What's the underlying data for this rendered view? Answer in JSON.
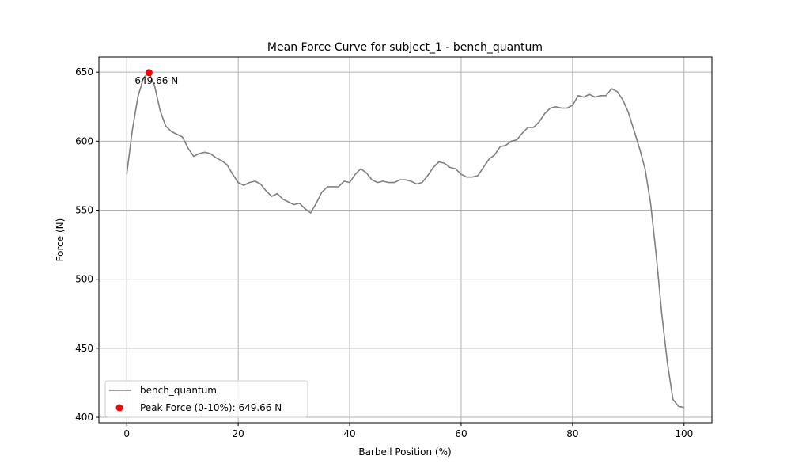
{
  "chart_data": {
    "type": "line",
    "title": "Mean Force Curve for subject_1 - bench_quantum",
    "xlabel": "Barbell Position (%)",
    "ylabel": "Force (N)",
    "xlim": [
      -5,
      105
    ],
    "ylim": [
      396,
      661
    ],
    "xticks": [
      "0",
      "20",
      "40",
      "60",
      "80",
      "100"
    ],
    "yticks": [
      "400",
      "450",
      "500",
      "550",
      "600",
      "650"
    ],
    "grid": true,
    "legend_position": "lower-left",
    "colors": {
      "series": "#808080",
      "peak": "#ff0000",
      "grid": "#b0b0b0"
    },
    "series": [
      {
        "name": "bench_quantum",
        "x": [
          0,
          1,
          2,
          3,
          4,
          5,
          6,
          7,
          8,
          9,
          10,
          11,
          12,
          13,
          14,
          15,
          16,
          17,
          18,
          19,
          20,
          21,
          22,
          23,
          24,
          25,
          26,
          27,
          28,
          29,
          30,
          31,
          32,
          33,
          34,
          35,
          36,
          37,
          38,
          39,
          40,
          41,
          42,
          43,
          44,
          45,
          46,
          47,
          48,
          49,
          50,
          51,
          52,
          53,
          54,
          55,
          56,
          57,
          58,
          59,
          60,
          61,
          62,
          63,
          64,
          65,
          66,
          67,
          68,
          69,
          70,
          71,
          72,
          73,
          74,
          75,
          76,
          77,
          78,
          79,
          80,
          81,
          82,
          83,
          84,
          85,
          86,
          87,
          88,
          89,
          90,
          91,
          92,
          93,
          94,
          95,
          96,
          97,
          98,
          99,
          100
        ],
        "y": [
          576,
          608,
          632,
          646,
          649.66,
          640,
          622,
          611,
          607,
          605,
          603,
          595,
          589,
          591,
          592,
          591,
          588,
          586,
          583,
          576,
          570,
          568,
          570,
          571,
          569,
          564,
          560,
          562,
          558,
          556,
          554,
          555,
          551,
          548,
          555,
          563,
          567,
          567,
          567,
          571,
          570,
          576,
          580,
          577,
          572,
          570,
          571,
          570,
          570,
          572,
          572,
          571,
          569,
          570,
          575,
          581,
          585,
          584,
          581,
          580,
          576,
          574,
          574,
          575,
          581,
          587,
          590,
          596,
          597,
          600,
          601,
          606,
          610,
          610,
          614,
          620,
          624,
          625,
          624,
          624,
          626,
          633,
          632,
          634,
          632,
          633,
          633,
          638,
          636,
          630,
          621,
          608,
          595,
          580,
          555,
          518,
          475,
          440,
          413,
          408,
          407
        ]
      }
    ],
    "peak": {
      "label": "Peak Force (0-10%): 649.66 N",
      "annotation": "649.66 N",
      "x": 4,
      "y": 649.66
    }
  }
}
